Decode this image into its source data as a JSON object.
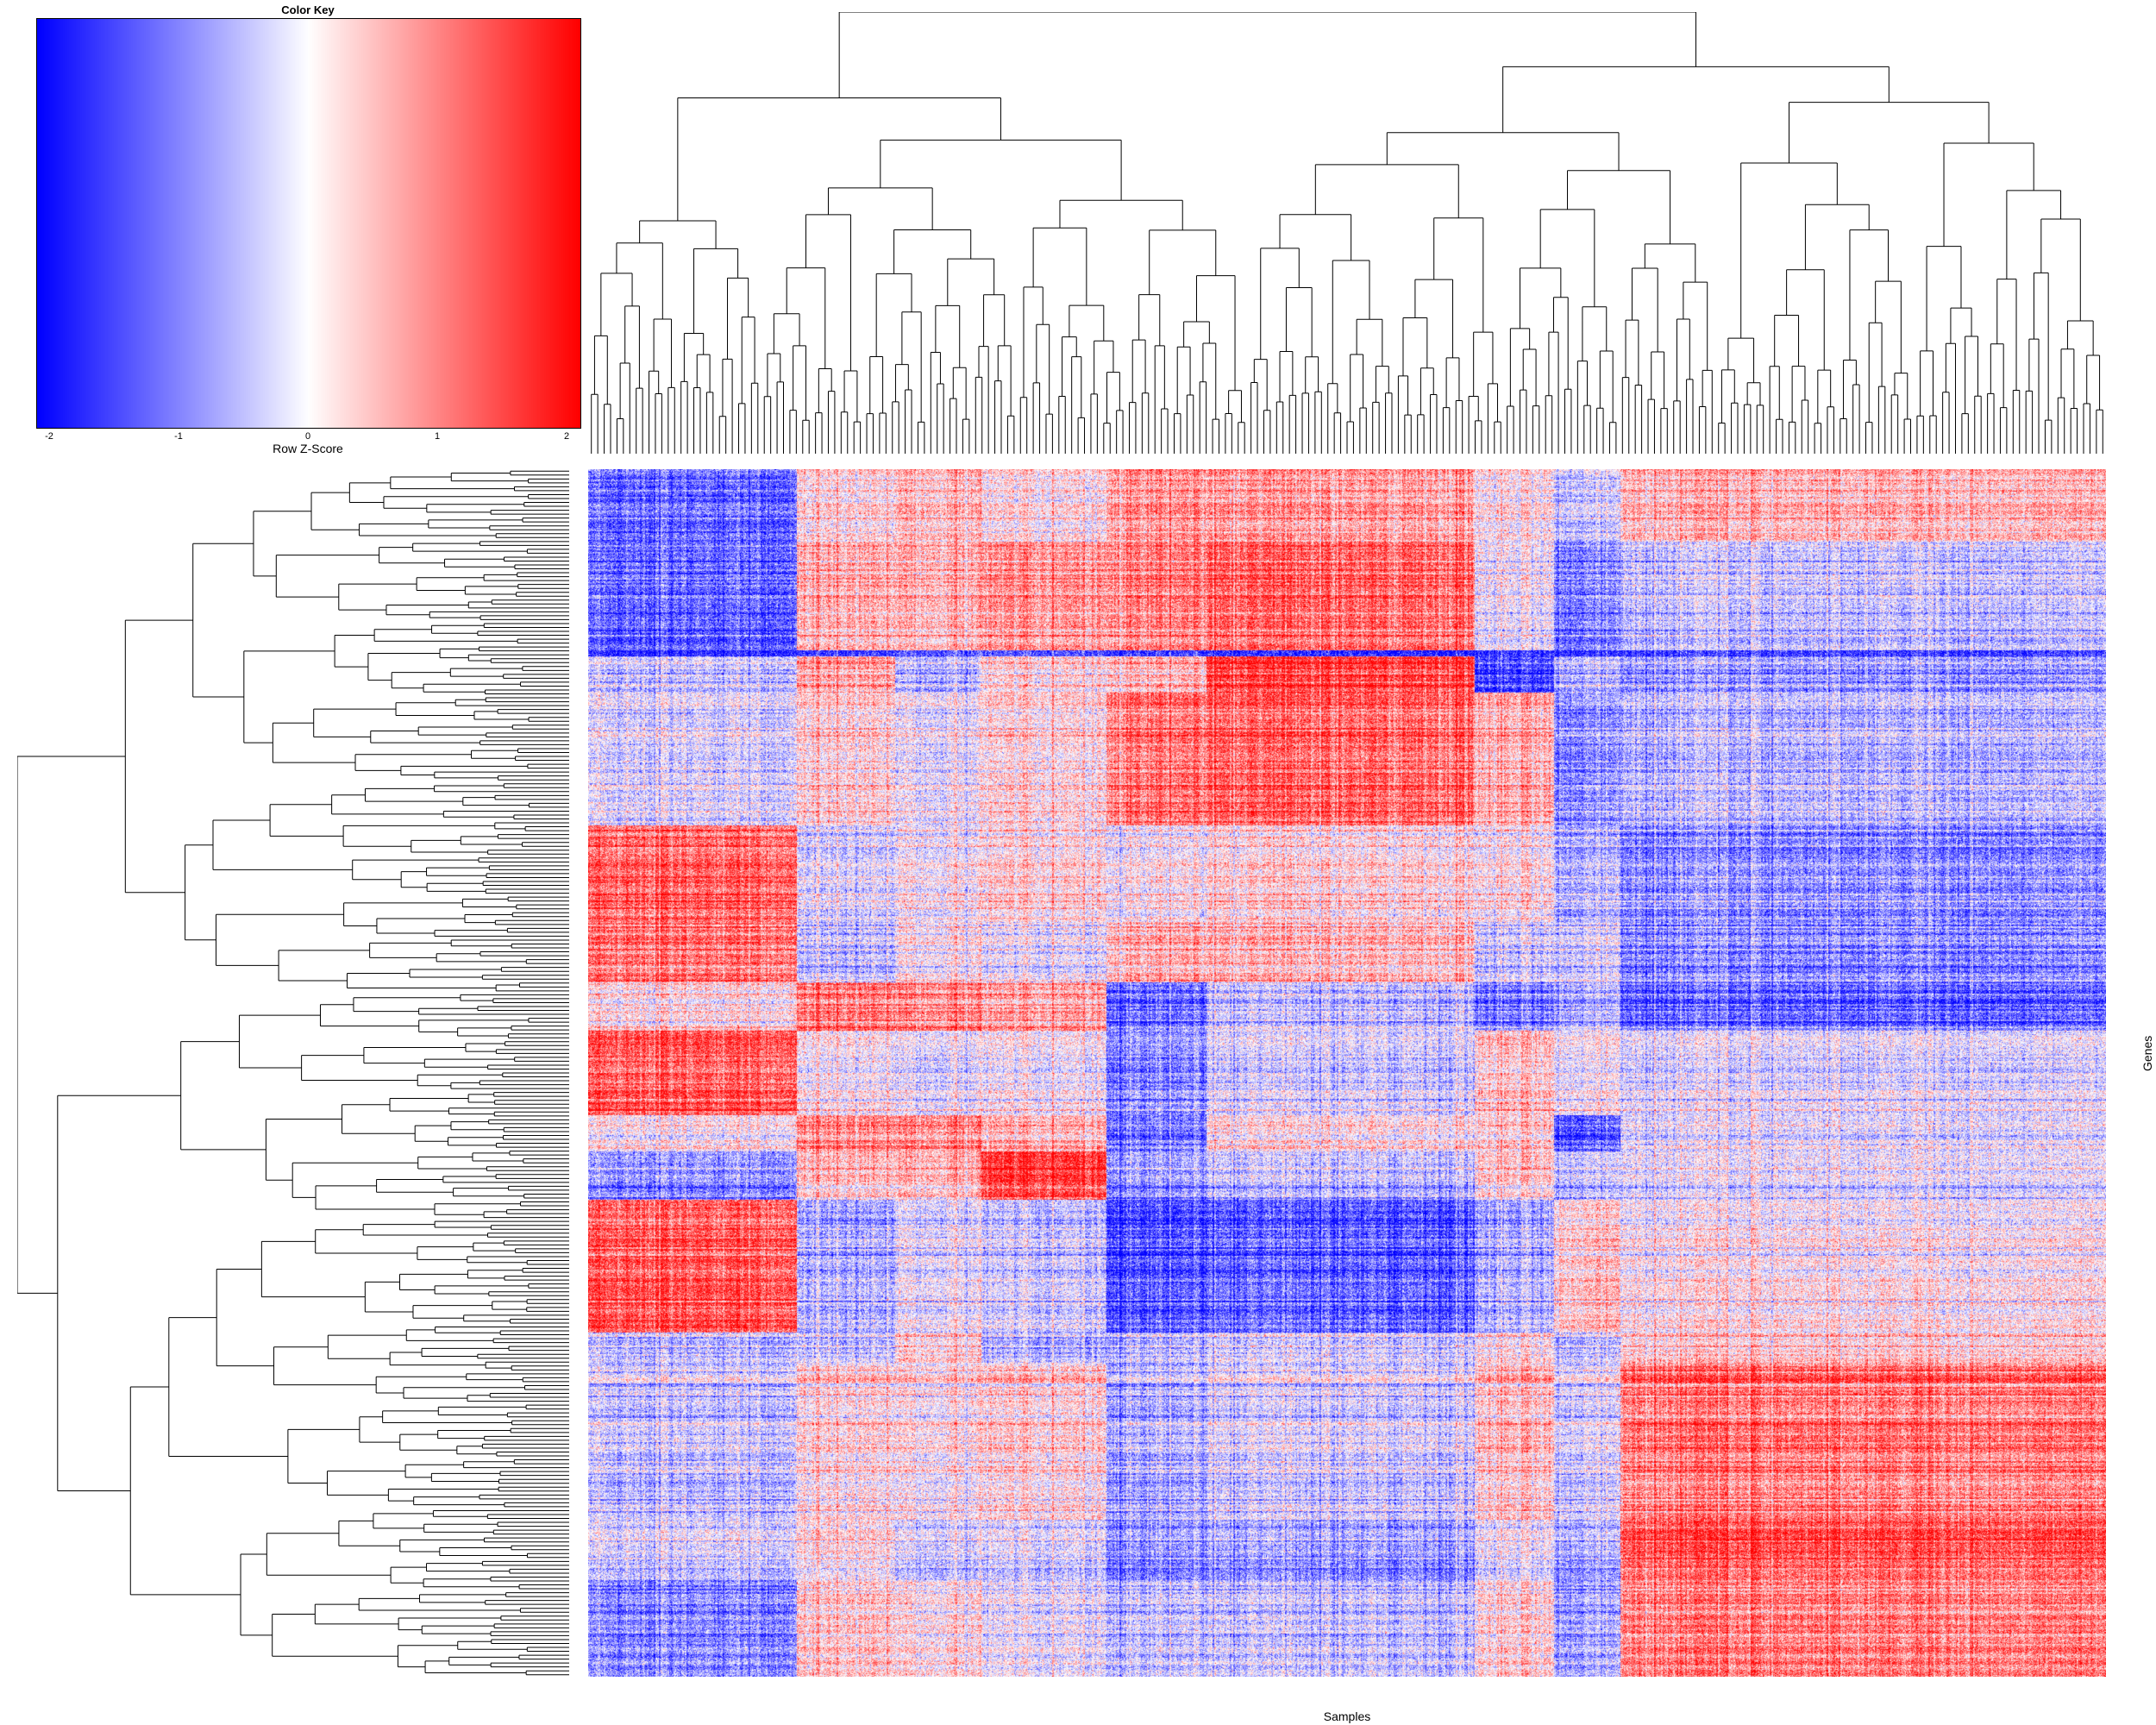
{
  "chart_data": {
    "type": "heatmap",
    "color_key": {
      "title": "Color Key",
      "label": "Row Z-Score",
      "ticks": [
        -2,
        -1,
        0,
        1,
        2
      ],
      "range": [
        -2.1,
        2.1
      ],
      "colors": {
        "low": "#0000ff",
        "mid": "#ffffff",
        "high": "#ff0000"
      }
    },
    "xlabel": "Samples",
    "ylabel": "Genes",
    "column_dendrogram": true,
    "row_dendrogram": true,
    "column_clusters": [
      {
        "share": 0.137
      },
      {
        "share": 0.065
      },
      {
        "share": 0.057
      },
      {
        "share": 0.082
      },
      {
        "share": 0.066
      },
      {
        "share": 0.177
      },
      {
        "share": 0.052
      },
      {
        "share": 0.044
      },
      {
        "share": 0.32
      }
    ],
    "row_blocks": [
      {
        "share": 0.06,
        "z": [
          -1.2,
          0.3,
          0.5,
          0.2,
          0.9,
          0.8,
          0.2,
          -0.4,
          0.6
        ]
      },
      {
        "share": 0.09,
        "z": [
          -1.2,
          0.7,
          0.6,
          0.9,
          1.1,
          1.3,
          0.0,
          -1.0,
          -0.4
        ]
      },
      {
        "share": 0.005,
        "z": [
          -1.6,
          -1.4,
          -1.2,
          -1.2,
          -1.4,
          -1.6,
          -1.4,
          -1.6,
          -1.4
        ]
      },
      {
        "share": 0.03,
        "z": [
          -0.4,
          0.8,
          -0.6,
          0.3,
          0.6,
          1.6,
          -1.5,
          -0.6,
          -0.8
        ]
      },
      {
        "share": 0.11,
        "z": [
          -0.3,
          0.3,
          -0.2,
          0.2,
          1.1,
          1.2,
          0.6,
          -1.0,
          -0.6
        ]
      },
      {
        "share": 0.08,
        "z": [
          1.3,
          -0.2,
          0.0,
          0.3,
          0.1,
          0.3,
          0.2,
          -0.6,
          -0.9
        ]
      },
      {
        "share": 0.05,
        "z": [
          1.1,
          -0.5,
          0.0,
          -0.2,
          0.6,
          0.5,
          -0.4,
          -0.4,
          -1.0
        ]
      },
      {
        "share": 0.04,
        "z": [
          0.3,
          1.2,
          1.0,
          0.8,
          -1.1,
          -0.4,
          -1.0,
          -0.6,
          -1.2
        ]
      },
      {
        "share": 0.07,
        "z": [
          1.4,
          0.1,
          -0.2,
          0.0,
          -0.9,
          -0.3,
          0.5,
          0.0,
          -0.2
        ]
      },
      {
        "share": 0.03,
        "z": [
          0.0,
          0.9,
          0.8,
          0.5,
          -1.2,
          0.1,
          0.3,
          -1.5,
          -0.3
        ]
      },
      {
        "share": 0.04,
        "z": [
          -0.9,
          0.5,
          0.5,
          1.6,
          -0.8,
          -0.5,
          0.4,
          -0.5,
          -0.2
        ]
      },
      {
        "share": 0.11,
        "z": [
          1.4,
          -0.6,
          -0.2,
          -0.4,
          -1.4,
          -1.3,
          -0.6,
          0.4,
          0.1
        ]
      },
      {
        "share": 0.025,
        "z": [
          -0.4,
          -0.3,
          0.4,
          -0.5,
          -0.4,
          -0.2,
          0.3,
          -0.4,
          0.5
        ]
      },
      {
        "share": 0.13,
        "z": [
          -0.4,
          0.3,
          0.1,
          0.3,
          -0.6,
          -0.3,
          0.5,
          -0.3,
          1.1
        ]
      },
      {
        "share": 0.05,
        "z": [
          -0.3,
          0.2,
          -0.4,
          -0.3,
          -0.9,
          -0.8,
          -0.1,
          -0.7,
          1.4
        ]
      },
      {
        "share": 0.08,
        "z": [
          -1.0,
          0.4,
          0.1,
          -0.2,
          -0.5,
          -0.5,
          0.3,
          -0.8,
          1.0
        ]
      }
    ]
  }
}
